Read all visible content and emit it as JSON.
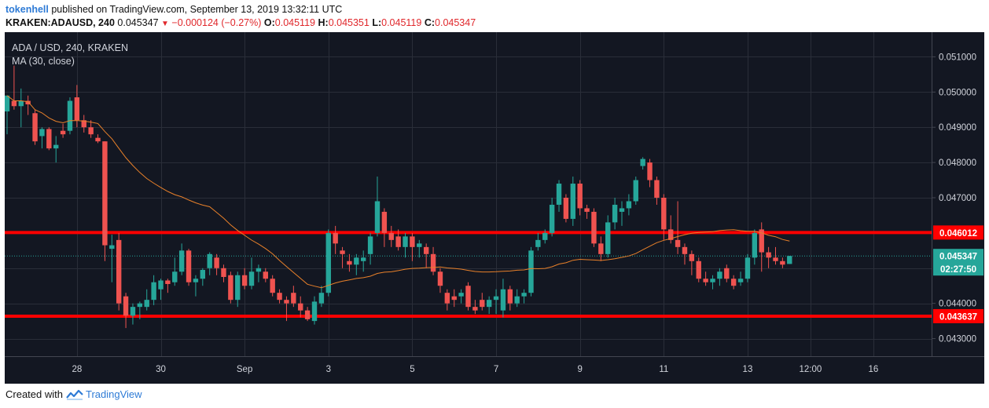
{
  "header": {
    "username": "tokenhell",
    "published_text": "published on TradingView.com, September 13, 2019 13:32:11 UTC",
    "symbol": "KRAKEN:ADAUSD, 240",
    "last": "0.045347",
    "change": "−0.000124 (−0.27%)",
    "o_label": "O:",
    "o_value": "0.045119",
    "h_label": "H:",
    "h_value": "0.045351",
    "l_label": "L:",
    "l_value": "0.045119",
    "c_label": "C:",
    "c_value": "0.045347"
  },
  "footer": {
    "created_with": "Created with",
    "brand": "TradingView"
  },
  "colors": {
    "background": "#131722",
    "grid": "#2a2e39",
    "up": "#26a69a",
    "down": "#ef5350",
    "ma": "#e8802a",
    "level": "#ff0000",
    "price_line": "#26a69a",
    "text": "#d1d4dc"
  },
  "chart_data": {
    "type": "candlestick",
    "title": "ADA / USD, 240, KRAKEN",
    "indicator": "MA (30, close)",
    "y_ticks": [
      "0.051000",
      "0.050000",
      "0.049000",
      "0.048000",
      "0.047000",
      "0.044000",
      "0.043000"
    ],
    "x_ticks": [
      {
        "label": "28",
        "date": "2019-08-28T00:00"
      },
      {
        "label": "30",
        "date": "2019-08-30T00:00"
      },
      {
        "label": "Sep",
        "date": "2019-09-01T00:00"
      },
      {
        "label": "3",
        "date": "2019-09-03T00:00"
      },
      {
        "label": "5",
        "date": "2019-09-05T00:00"
      },
      {
        "label": "7",
        "date": "2019-09-07T00:00"
      },
      {
        "label": "9",
        "date": "2019-09-09T00:00"
      },
      {
        "label": "11",
        "date": "2019-09-11T00:00"
      },
      {
        "label": "13",
        "date": "2019-09-13T00:00"
      },
      {
        "label": "12:00",
        "date": "2019-09-14T12:00"
      },
      {
        "label": "16",
        "date": "2019-09-16T00:00"
      }
    ],
    "ylim": [
      0.0425,
      0.0517
    ],
    "xlim": [
      "2019-08-26T08:00",
      "2019-09-17T08:00"
    ],
    "horizontal_levels": [
      {
        "label": "0.046012",
        "value": 0.046012
      },
      {
        "label": "0.043637",
        "value": 0.043637
      }
    ],
    "last_price": {
      "label": "0.045347",
      "value": 0.045347,
      "countdown": "02:27:50"
    },
    "candles": [
      {
        "t": "2019-08-26T08:00",
        "o": 0.04945,
        "h": 0.0499,
        "l": 0.0488,
        "c": 0.0499
      },
      {
        "t": "2019-08-26T12:00",
        "o": 0.04975,
        "h": 0.05075,
        "l": 0.0495,
        "c": 0.0496
      },
      {
        "t": "2019-08-26T16:00",
        "o": 0.0496,
        "h": 0.0501,
        "l": 0.049,
        "c": 0.04975
      },
      {
        "t": "2019-08-26T20:00",
        "o": 0.04975,
        "h": 0.0499,
        "l": 0.04935,
        "c": 0.04965
      },
      {
        "t": "2019-08-27T00:00",
        "o": 0.0494,
        "h": 0.0495,
        "l": 0.0485,
        "c": 0.0486
      },
      {
        "t": "2019-08-27T04:00",
        "o": 0.04875,
        "h": 0.049,
        "l": 0.0484,
        "c": 0.04895
      },
      {
        "t": "2019-08-27T08:00",
        "o": 0.04895,
        "h": 0.049,
        "l": 0.04835,
        "c": 0.0484
      },
      {
        "t": "2019-08-27T12:00",
        "o": 0.0484,
        "h": 0.04875,
        "l": 0.048,
        "c": 0.0485
      },
      {
        "t": "2019-08-27T16:00",
        "o": 0.0489,
        "h": 0.0491,
        "l": 0.0487,
        "c": 0.0488
      },
      {
        "t": "2019-08-27T20:00",
        "o": 0.0489,
        "h": 0.04985,
        "l": 0.0488,
        "c": 0.04975
      },
      {
        "t": "2019-08-28T00:00",
        "o": 0.04985,
        "h": 0.0502,
        "l": 0.049,
        "c": 0.0492
      },
      {
        "t": "2019-08-28T04:00",
        "o": 0.0492,
        "h": 0.04935,
        "l": 0.04885,
        "c": 0.049
      },
      {
        "t": "2019-08-28T08:00",
        "o": 0.049,
        "h": 0.0492,
        "l": 0.0487,
        "c": 0.0488
      },
      {
        "t": "2019-08-28T12:00",
        "o": 0.0487,
        "h": 0.0488,
        "l": 0.04855,
        "c": 0.0486
      },
      {
        "t": "2019-08-28T16:00",
        "o": 0.0486,
        "h": 0.0486,
        "l": 0.0452,
        "c": 0.04565
      },
      {
        "t": "2019-08-28T20:00",
        "o": 0.04555,
        "h": 0.04595,
        "l": 0.0446,
        "c": 0.04565
      },
      {
        "t": "2019-08-29T00:00",
        "o": 0.0458,
        "h": 0.046,
        "l": 0.0438,
        "c": 0.044
      },
      {
        "t": "2019-08-29T04:00",
        "o": 0.0442,
        "h": 0.0443,
        "l": 0.0433,
        "c": 0.04365
      },
      {
        "t": "2019-08-29T08:00",
        "o": 0.04365,
        "h": 0.044,
        "l": 0.0434,
        "c": 0.0439
      },
      {
        "t": "2019-08-29T12:00",
        "o": 0.0439,
        "h": 0.04405,
        "l": 0.04355,
        "c": 0.044
      },
      {
        "t": "2019-08-29T16:00",
        "o": 0.0439,
        "h": 0.0444,
        "l": 0.0438,
        "c": 0.0441
      },
      {
        "t": "2019-08-29T20:00",
        "o": 0.0441,
        "h": 0.0448,
        "l": 0.04395,
        "c": 0.0446
      },
      {
        "t": "2019-08-30T00:00",
        "o": 0.0444,
        "h": 0.0447,
        "l": 0.0441,
        "c": 0.04465
      },
      {
        "t": "2019-08-30T04:00",
        "o": 0.04465,
        "h": 0.0447,
        "l": 0.0443,
        "c": 0.04455
      },
      {
        "t": "2019-08-30T08:00",
        "o": 0.0446,
        "h": 0.0453,
        "l": 0.0445,
        "c": 0.0449
      },
      {
        "t": "2019-08-30T12:00",
        "o": 0.0449,
        "h": 0.0457,
        "l": 0.0448,
        "c": 0.0455
      },
      {
        "t": "2019-08-30T16:00",
        "o": 0.0455,
        "h": 0.04555,
        "l": 0.0445,
        "c": 0.0446
      },
      {
        "t": "2019-08-30T20:00",
        "o": 0.0446,
        "h": 0.0448,
        "l": 0.0442,
        "c": 0.0447
      },
      {
        "t": "2019-08-31T00:00",
        "o": 0.0447,
        "h": 0.045,
        "l": 0.0445,
        "c": 0.04495
      },
      {
        "t": "2019-08-31T04:00",
        "o": 0.045,
        "h": 0.04545,
        "l": 0.0448,
        "c": 0.0454
      },
      {
        "t": "2019-08-31T08:00",
        "o": 0.0453,
        "h": 0.0454,
        "l": 0.0448,
        "c": 0.045
      },
      {
        "t": "2019-08-31T12:00",
        "o": 0.045,
        "h": 0.0451,
        "l": 0.0446,
        "c": 0.04475
      },
      {
        "t": "2019-08-31T16:00",
        "o": 0.0448,
        "h": 0.0449,
        "l": 0.044,
        "c": 0.0441
      },
      {
        "t": "2019-08-31T20:00",
        "o": 0.0441,
        "h": 0.0449,
        "l": 0.0439,
        "c": 0.0448
      },
      {
        "t": "2019-09-01T00:00",
        "o": 0.0448,
        "h": 0.045,
        "l": 0.0444,
        "c": 0.0445
      },
      {
        "t": "2019-09-01T04:00",
        "o": 0.0445,
        "h": 0.0453,
        "l": 0.0444,
        "c": 0.0449
      },
      {
        "t": "2019-09-01T08:00",
        "o": 0.0449,
        "h": 0.0451,
        "l": 0.0446,
        "c": 0.045
      },
      {
        "t": "2019-09-01T12:00",
        "o": 0.0449,
        "h": 0.045,
        "l": 0.0446,
        "c": 0.0447
      },
      {
        "t": "2019-09-01T16:00",
        "o": 0.0447,
        "h": 0.0448,
        "l": 0.0442,
        "c": 0.0443
      },
      {
        "t": "2019-09-01T20:00",
        "o": 0.0443,
        "h": 0.0444,
        "l": 0.044,
        "c": 0.0441
      },
      {
        "t": "2019-09-02T00:00",
        "o": 0.0441,
        "h": 0.0442,
        "l": 0.0435,
        "c": 0.044
      },
      {
        "t": "2019-09-02T04:00",
        "o": 0.0443,
        "h": 0.0445,
        "l": 0.0439,
        "c": 0.044
      },
      {
        "t": "2019-09-02T08:00",
        "o": 0.044,
        "h": 0.0442,
        "l": 0.0436,
        "c": 0.0438
      },
      {
        "t": "2019-09-02T12:00",
        "o": 0.0438,
        "h": 0.0439,
        "l": 0.0435,
        "c": 0.04355
      },
      {
        "t": "2019-09-02T16:00",
        "o": 0.0435,
        "h": 0.0442,
        "l": 0.0434,
        "c": 0.04405
      },
      {
        "t": "2019-09-02T20:00",
        "o": 0.044,
        "h": 0.0445,
        "l": 0.0439,
        "c": 0.0443
      },
      {
        "t": "2019-09-03T00:00",
        "o": 0.0443,
        "h": 0.0461,
        "l": 0.0442,
        "c": 0.046
      },
      {
        "t": "2019-09-03T04:00",
        "o": 0.046,
        "h": 0.0462,
        "l": 0.0454,
        "c": 0.0457
      },
      {
        "t": "2019-09-03T08:00",
        "o": 0.0455,
        "h": 0.0456,
        "l": 0.045,
        "c": 0.0454
      },
      {
        "t": "2019-09-03T12:00",
        "o": 0.0452,
        "h": 0.0454,
        "l": 0.0449,
        "c": 0.0451
      },
      {
        "t": "2019-09-03T16:00",
        "o": 0.0451,
        "h": 0.0454,
        "l": 0.0448,
        "c": 0.0453
      },
      {
        "t": "2019-09-03T20:00",
        "o": 0.0452,
        "h": 0.0455,
        "l": 0.0449,
        "c": 0.0453
      },
      {
        "t": "2019-09-04T00:00",
        "o": 0.0454,
        "h": 0.046,
        "l": 0.0451,
        "c": 0.0459
      },
      {
        "t": "2019-09-04T04:00",
        "o": 0.046,
        "h": 0.0476,
        "l": 0.0459,
        "c": 0.0469
      },
      {
        "t": "2019-09-04T08:00",
        "o": 0.0466,
        "h": 0.0467,
        "l": 0.0456,
        "c": 0.046
      },
      {
        "t": "2019-09-04T12:00",
        "o": 0.046,
        "h": 0.0462,
        "l": 0.0456,
        "c": 0.0458
      },
      {
        "t": "2019-09-04T16:00",
        "o": 0.0459,
        "h": 0.0461,
        "l": 0.0455,
        "c": 0.0456
      },
      {
        "t": "2019-09-04T20:00",
        "o": 0.0456,
        "h": 0.046,
        "l": 0.0453,
        "c": 0.0459
      },
      {
        "t": "2019-09-05T00:00",
        "o": 0.0459,
        "h": 0.046,
        "l": 0.0452,
        "c": 0.0456
      },
      {
        "t": "2019-09-05T04:00",
        "o": 0.0456,
        "h": 0.0458,
        "l": 0.0453,
        "c": 0.0457
      },
      {
        "t": "2019-09-05T08:00",
        "o": 0.0456,
        "h": 0.0457,
        "l": 0.045,
        "c": 0.0454
      },
      {
        "t": "2019-09-05T12:00",
        "o": 0.0454,
        "h": 0.0456,
        "l": 0.0448,
        "c": 0.0449
      },
      {
        "t": "2019-09-05T16:00",
        "o": 0.0449,
        "h": 0.045,
        "l": 0.0443,
        "c": 0.0445
      },
      {
        "t": "2019-09-05T20:00",
        "o": 0.0443,
        "h": 0.0444,
        "l": 0.0438,
        "c": 0.044
      },
      {
        "t": "2019-09-06T00:00",
        "o": 0.0442,
        "h": 0.0444,
        "l": 0.0439,
        "c": 0.0441
      },
      {
        "t": "2019-09-06T04:00",
        "o": 0.0442,
        "h": 0.0444,
        "l": 0.044,
        "c": 0.0443
      },
      {
        "t": "2019-09-06T08:00",
        "o": 0.0445,
        "h": 0.0446,
        "l": 0.0438,
        "c": 0.0439
      },
      {
        "t": "2019-09-06T12:00",
        "o": 0.0439,
        "h": 0.0441,
        "l": 0.0437,
        "c": 0.0438
      },
      {
        "t": "2019-09-06T16:00",
        "o": 0.0441,
        "h": 0.0443,
        "l": 0.0438,
        "c": 0.0439
      },
      {
        "t": "2019-09-06T20:00",
        "o": 0.0439,
        "h": 0.0442,
        "l": 0.0437,
        "c": 0.0441
      },
      {
        "t": "2019-09-07T00:00",
        "o": 0.0441,
        "h": 0.0444,
        "l": 0.0437,
        "c": 0.0442
      },
      {
        "t": "2019-09-07T04:00",
        "o": 0.0438,
        "h": 0.0447,
        "l": 0.0436,
        "c": 0.0444
      },
      {
        "t": "2019-09-07T08:00",
        "o": 0.0444,
        "h": 0.0445,
        "l": 0.0438,
        "c": 0.044
      },
      {
        "t": "2019-09-07T12:00",
        "o": 0.044,
        "h": 0.0444,
        "l": 0.0439,
        "c": 0.0442
      },
      {
        "t": "2019-09-07T16:00",
        "o": 0.0442,
        "h": 0.0444,
        "l": 0.044,
        "c": 0.0443
      },
      {
        "t": "2019-09-07T20:00",
        "o": 0.0443,
        "h": 0.0456,
        "l": 0.0442,
        "c": 0.0455
      },
      {
        "t": "2019-09-08T00:00",
        "o": 0.0456,
        "h": 0.046,
        "l": 0.0455,
        "c": 0.0458
      },
      {
        "t": "2019-09-08T04:00",
        "o": 0.0458,
        "h": 0.0461,
        "l": 0.0457,
        "c": 0.046
      },
      {
        "t": "2019-09-08T08:00",
        "o": 0.046,
        "h": 0.047,
        "l": 0.0459,
        "c": 0.0468
      },
      {
        "t": "2019-09-08T12:00",
        "o": 0.0468,
        "h": 0.0475,
        "l": 0.0466,
        "c": 0.0474
      },
      {
        "t": "2019-09-08T16:00",
        "o": 0.047,
        "h": 0.0471,
        "l": 0.0463,
        "c": 0.0464
      },
      {
        "t": "2019-09-08T20:00",
        "o": 0.0464,
        "h": 0.0476,
        "l": 0.0462,
        "c": 0.0474
      },
      {
        "t": "2019-09-09T00:00",
        "o": 0.0474,
        "h": 0.0475,
        "l": 0.0465,
        "c": 0.0467
      },
      {
        "t": "2019-09-09T04:00",
        "o": 0.0467,
        "h": 0.0468,
        "l": 0.0464,
        "c": 0.0466
      },
      {
        "t": "2019-09-09T08:00",
        "o": 0.0466,
        "h": 0.0467,
        "l": 0.0456,
        "c": 0.0457
      },
      {
        "t": "2019-09-09T12:00",
        "o": 0.0457,
        "h": 0.0459,
        "l": 0.0452,
        "c": 0.0454
      },
      {
        "t": "2019-09-09T16:00",
        "o": 0.0454,
        "h": 0.0465,
        "l": 0.0453,
        "c": 0.0463
      },
      {
        "t": "2019-09-09T20:00",
        "o": 0.0463,
        "h": 0.047,
        "l": 0.0461,
        "c": 0.0468
      },
      {
        "t": "2019-09-10T00:00",
        "o": 0.0466,
        "h": 0.0469,
        "l": 0.0462,
        "c": 0.0467
      },
      {
        "t": "2019-09-10T04:00",
        "o": 0.0467,
        "h": 0.0471,
        "l": 0.0465,
        "c": 0.0469
      },
      {
        "t": "2019-09-10T08:00",
        "o": 0.0469,
        "h": 0.0476,
        "l": 0.0468,
        "c": 0.0475
      },
      {
        "t": "2019-09-10T12:00",
        "o": 0.0479,
        "h": 0.04815,
        "l": 0.0478,
        "c": 0.0481
      },
      {
        "t": "2019-09-10T16:00",
        "o": 0.048,
        "h": 0.0481,
        "l": 0.0473,
        "c": 0.0475
      },
      {
        "t": "2019-09-10T20:00",
        "o": 0.0475,
        "h": 0.0476,
        "l": 0.0468,
        "c": 0.047
      },
      {
        "t": "2019-09-11T00:00",
        "o": 0.047,
        "h": 0.0471,
        "l": 0.0458,
        "c": 0.0461
      },
      {
        "t": "2019-09-11T04:00",
        "o": 0.0461,
        "h": 0.0465,
        "l": 0.0457,
        "c": 0.0458
      },
      {
        "t": "2019-09-11T08:00",
        "o": 0.0458,
        "h": 0.0469,
        "l": 0.0454,
        "c": 0.0456
      },
      {
        "t": "2019-09-11T12:00",
        "o": 0.0456,
        "h": 0.0457,
        "l": 0.0451,
        "c": 0.0454
      },
      {
        "t": "2019-09-11T16:00",
        "o": 0.0454,
        "h": 0.0455,
        "l": 0.0448,
        "c": 0.0452
      },
      {
        "t": "2019-09-11T20:00",
        "o": 0.0452,
        "h": 0.0453,
        "l": 0.0446,
        "c": 0.0447
      },
      {
        "t": "2019-09-12T00:00",
        "o": 0.0447,
        "h": 0.0449,
        "l": 0.0445,
        "c": 0.0446
      },
      {
        "t": "2019-09-12T04:00",
        "o": 0.0446,
        "h": 0.0448,
        "l": 0.0444,
        "c": 0.0447
      },
      {
        "t": "2019-09-12T08:00",
        "o": 0.0447,
        "h": 0.045,
        "l": 0.0445,
        "c": 0.0449
      },
      {
        "t": "2019-09-12T12:00",
        "o": 0.045,
        "h": 0.0451,
        "l": 0.0446,
        "c": 0.0447
      },
      {
        "t": "2019-09-12T16:00",
        "o": 0.0447,
        "h": 0.0448,
        "l": 0.0444,
        "c": 0.0445
      },
      {
        "t": "2019-09-12T20:00",
        "o": 0.0446,
        "h": 0.0449,
        "l": 0.0445,
        "c": 0.0447
      },
      {
        "t": "2019-09-13T00:00",
        "o": 0.0447,
        "h": 0.0454,
        "l": 0.0446,
        "c": 0.0453
      },
      {
        "t": "2019-09-13T04:00",
        "o": 0.0453,
        "h": 0.0461,
        "l": 0.0451,
        "c": 0.046
      },
      {
        "t": "2019-09-13T08:00",
        "o": 0.0461,
        "h": 0.0463,
        "l": 0.0449,
        "c": 0.04545
      },
      {
        "t": "2019-09-13T12:00",
        "o": 0.04545,
        "h": 0.0456,
        "l": 0.045,
        "c": 0.0453
      },
      {
        "t": "2019-09-13T16:00",
        "o": 0.0453,
        "h": 0.0456,
        "l": 0.0451,
        "c": 0.0452
      },
      {
        "t": "2019-09-13T20:00",
        "o": 0.0452,
        "h": 0.0453,
        "l": 0.045,
        "c": 0.0451
      },
      {
        "t": "2019-09-14T00:00",
        "o": 0.045119,
        "h": 0.045351,
        "l": 0.045119,
        "c": 0.045347
      }
    ],
    "ma_period": 30
  }
}
